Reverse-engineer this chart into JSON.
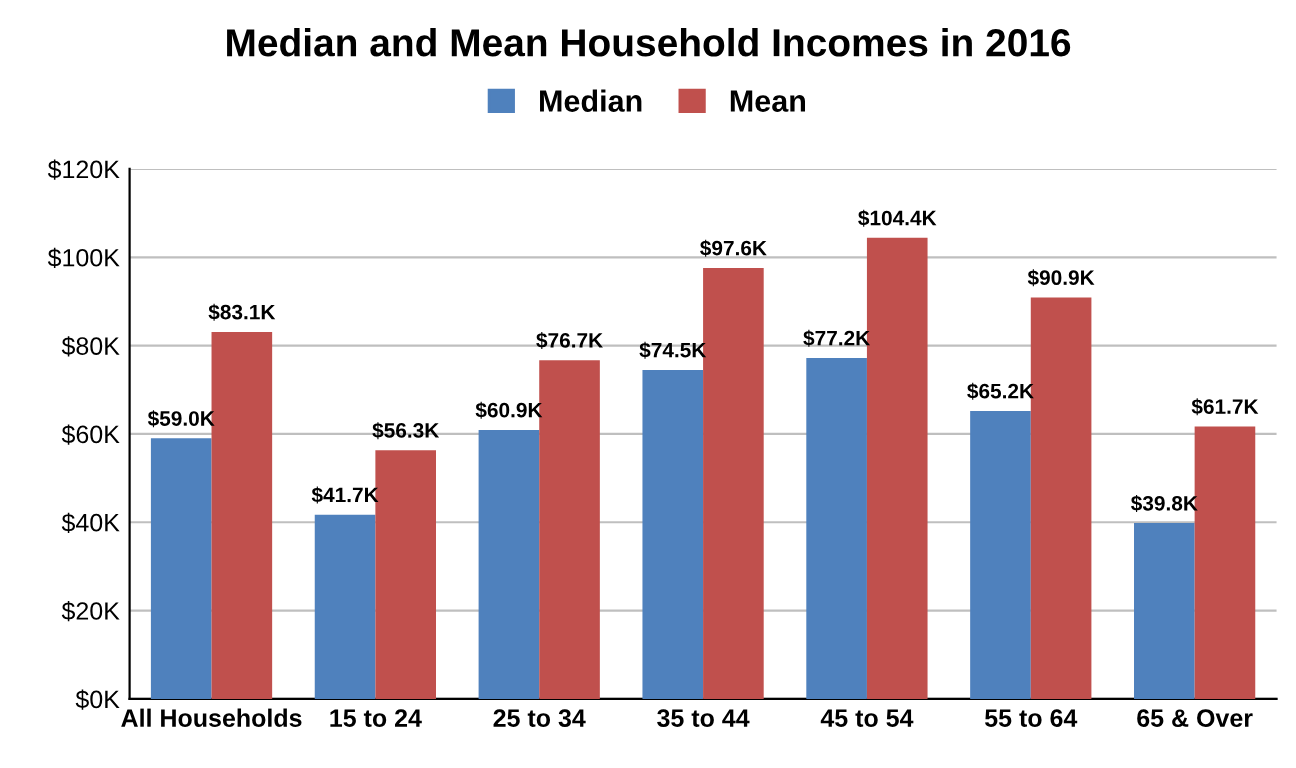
{
  "chart_data": {
    "type": "bar",
    "title": "Median and Mean Household Incomes in 2016",
    "categories": [
      "All Households",
      "15 to 24",
      "25 to 34",
      "35 to 44",
      "45 to 54",
      "55 to 64",
      "65 & Over"
    ],
    "series": [
      {
        "name": "Median",
        "color": "#4f81bd",
        "values": [
          59.0,
          41.7,
          60.9,
          74.5,
          77.2,
          65.2,
          39.8
        ],
        "value_labels": [
          "$59.0K",
          "$41.7K",
          "$60.9K",
          "$74.5K",
          "$77.2K",
          "$65.2K",
          "$39.8K"
        ]
      },
      {
        "name": "Mean",
        "color": "#c0504d",
        "values": [
          83.1,
          56.3,
          76.7,
          97.6,
          104.4,
          90.9,
          61.7
        ],
        "value_labels": [
          "$83.1K",
          "$56.3K",
          "$76.7K",
          "$97.6K",
          "$104.4K",
          "$90.9K",
          "$61.7K"
        ]
      }
    ],
    "ylim": [
      0,
      120
    ],
    "yticks": [
      {
        "value": 0,
        "label": "$0K"
      },
      {
        "value": 20,
        "label": "$20K"
      },
      {
        "value": 40,
        "label": "$40K"
      },
      {
        "value": 60,
        "label": "$60K"
      },
      {
        "value": 80,
        "label": "$80K"
      },
      {
        "value": 100,
        "label": "$100K"
      },
      {
        "value": 120,
        "label": "$120K"
      }
    ],
    "grid": "y",
    "legend": "top"
  }
}
